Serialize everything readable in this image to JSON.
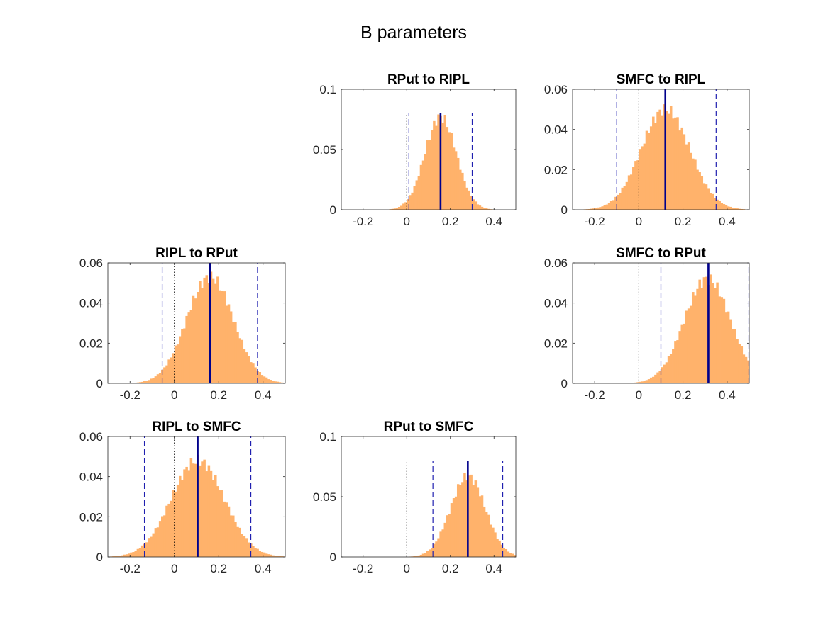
{
  "figure": {
    "title": "B parameters",
    "colors": {
      "bars": "#FFB26B",
      "median_line": "#00008B",
      "interval_line": "#2020B0",
      "zero_line": "#000000"
    }
  },
  "chart_data": [
    {
      "type": "bar",
      "title": "RPut to RIPL",
      "xlim": [
        -0.3,
        0.5
      ],
      "ylim": [
        0,
        0.1
      ],
      "xticks": [
        -0.2,
        0,
        0.2,
        0.4
      ],
      "xtick_labels": [
        "-0.2",
        "0",
        "0.2",
        "0.4"
      ],
      "yticks": [
        0,
        0.05,
        0.1
      ],
      "ytick_labels": [
        "0",
        "0.05",
        "0.1"
      ],
      "hist": {
        "mean": 0.155,
        "sd": 0.072,
        "peak": 0.077
      },
      "median": 0.155,
      "ci": [
        0.01,
        0.3
      ],
      "zero": 0,
      "line_height": 0.08
    },
    {
      "type": "bar",
      "title": "SMFC to RIPL",
      "xlim": [
        -0.3,
        0.5
      ],
      "ylim": [
        0,
        0.06
      ],
      "xticks": [
        -0.2,
        0,
        0.2,
        0.4
      ],
      "xtick_labels": [
        "-0.2",
        "0",
        "0.2",
        "0.4"
      ],
      "yticks": [
        0,
        0.02,
        0.04,
        0.06
      ],
      "ytick_labels": [
        "0",
        "0.02",
        "0.04",
        "0.06"
      ],
      "hist": {
        "mean": 0.12,
        "sd": 0.11,
        "peak": 0.05
      },
      "median": 0.12,
      "ci": [
        -0.1,
        0.35
      ],
      "zero": 0,
      "line_height": 0.06
    },
    {
      "type": "bar",
      "title": "RIPL to RPut",
      "xlim": [
        -0.3,
        0.5
      ],
      "ylim": [
        0,
        0.06
      ],
      "xticks": [
        -0.2,
        0,
        0.2,
        0.4
      ],
      "xtick_labels": [
        "-0.2",
        "0",
        "0.2",
        "0.4"
      ],
      "yticks": [
        0,
        0.02,
        0.04,
        0.06
      ],
      "ytick_labels": [
        "0",
        "0.02",
        "0.04",
        "0.06"
      ],
      "hist": {
        "mean": 0.16,
        "sd": 0.105,
        "peak": 0.053
      },
      "median": 0.16,
      "ci": [
        -0.055,
        0.375
      ],
      "zero": 0,
      "line_height": 0.06
    },
    {
      "type": "bar",
      "title": "SMFC to RPut",
      "xlim": [
        -0.3,
        0.5
      ],
      "ylim": [
        0,
        0.06
      ],
      "xticks": [
        -0.2,
        0,
        0.2,
        0.4
      ],
      "xtick_labels": [
        "-0.2",
        "0",
        "0.2",
        "0.4"
      ],
      "yticks": [
        0,
        0.02,
        0.04,
        0.06
      ],
      "ytick_labels": [
        "0",
        "0.02",
        "0.04",
        "0.06"
      ],
      "hist": {
        "mean": 0.31,
        "sd": 0.105,
        "peak": 0.052
      },
      "median": 0.315,
      "ci": [
        0.1,
        0.5
      ],
      "zero": 0,
      "line_height": 0.06
    },
    {
      "type": "bar",
      "title": "RIPL to SMFC",
      "xlim": [
        -0.3,
        0.5
      ],
      "ylim": [
        0,
        0.06
      ],
      "xticks": [
        -0.2,
        0,
        0.2,
        0.4
      ],
      "xtick_labels": [
        "-0.2",
        "0",
        "0.2",
        "0.4"
      ],
      "yticks": [
        0,
        0.02,
        0.04,
        0.06
      ],
      "ytick_labels": [
        "0",
        "0.02",
        "0.04",
        "0.06"
      ],
      "hist": {
        "mean": 0.105,
        "sd": 0.12,
        "peak": 0.048
      },
      "median": 0.105,
      "ci": [
        -0.135,
        0.345
      ],
      "zero": 0,
      "line_height": 0.06
    },
    {
      "type": "bar",
      "title": "RPut to SMFC",
      "xlim": [
        -0.3,
        0.5
      ],
      "ylim": [
        0,
        0.1
      ],
      "xticks": [
        -0.2,
        0,
        0.2,
        0.4
      ],
      "xtick_labels": [
        "-0.2",
        "0",
        "0.2",
        "0.4"
      ],
      "yticks": [
        0,
        0.05,
        0.1
      ],
      "ytick_labels": [
        "0",
        "0.05",
        "0.1"
      ],
      "hist": {
        "mean": 0.28,
        "sd": 0.08,
        "peak": 0.067
      },
      "median": 0.28,
      "ci": [
        0.12,
        0.44
      ],
      "zero": 0,
      "line_height": 0.08
    }
  ]
}
